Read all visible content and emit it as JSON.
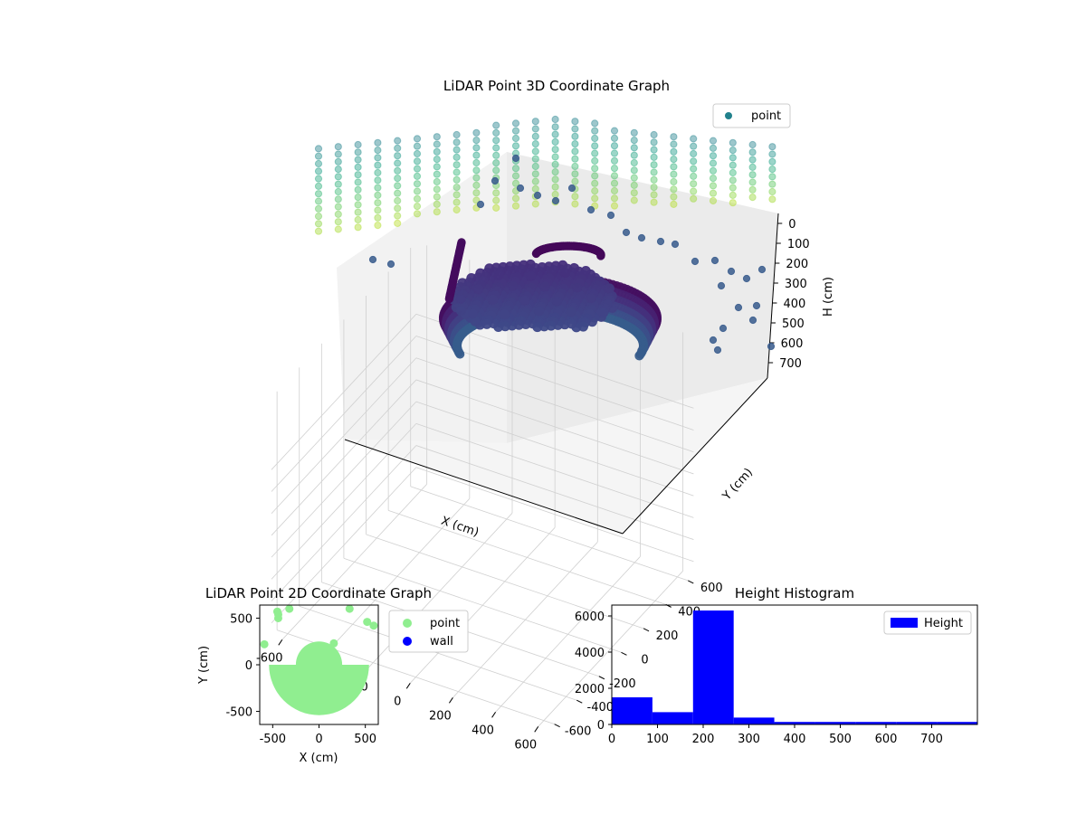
{
  "colors": {
    "scatter_2d": "#90ee90",
    "wall_2d": "#0000ff",
    "hist_bar": "#0000ff",
    "legend_3d_marker": "#21818c",
    "pane_left": "#f2f2f2",
    "pane_right": "#ebebeb",
    "pane_floor": "#f5f5f5",
    "grid": "#d0d0d0"
  },
  "chart_data": [
    {
      "type": "scatter",
      "projection": "3d",
      "title": "LiDAR Point 3D Coordinate Graph",
      "xlabel": "X (cm)",
      "ylabel": "Y (cm)",
      "zlabel": "H (cm)",
      "xticks": [
        -600,
        -400,
        -200,
        0,
        200,
        400,
        600
      ],
      "yticks": [
        -600,
        -400,
        -200,
        0,
        200,
        400,
        600
      ],
      "zticks": [
        0,
        100,
        200,
        300,
        400,
        500,
        600,
        700
      ],
      "xlim": [
        -650,
        650
      ],
      "ylim": [
        -650,
        650
      ],
      "zlim": [
        760,
        0
      ],
      "z_axis_inverted": true,
      "colormap": "viridis",
      "grid": true,
      "legend": {
        "placement": "upper-right",
        "entries": [
          "point"
        ]
      }
    },
    {
      "type": "scatter",
      "title": "LiDAR Point 2D Coordinate Graph",
      "xlabel": "X (cm)",
      "ylabel": "Y (cm)",
      "xticks": [
        -500,
        0,
        500
      ],
      "yticks": [
        -500,
        0,
        500
      ],
      "xlim": [
        -640,
        640
      ],
      "ylim": [
        -640,
        640
      ],
      "legend": {
        "placement": "outside-right",
        "entries": [
          "point",
          "wall"
        ]
      },
      "series": [
        {
          "name": "point",
          "shape": "half-disc",
          "center": [
            0,
            0
          ],
          "radius": 540,
          "region": "y<=0"
        },
        {
          "name": "point",
          "shape": "cap",
          "center": [
            0,
            0
          ],
          "radius": 250,
          "region": "y>=0"
        },
        {
          "name": "point",
          "x": [
            -450,
            -440,
            -440,
            -320,
            330,
            520,
            590,
            -590,
            160
          ],
          "y": [
            570,
            540,
            500,
            600,
            600,
            460,
            420,
            220,
            230
          ]
        },
        {
          "name": "wall",
          "x": [],
          "y": []
        }
      ]
    },
    {
      "type": "bar",
      "title": "Height Histogram",
      "legend": {
        "placement": "upper-right",
        "entries": [
          "Height"
        ]
      },
      "xticks": [
        0,
        100,
        200,
        300,
        400,
        500,
        600,
        700
      ],
      "yticks": [
        0,
        2000,
        4000,
        6000
      ],
      "xlim": [
        0,
        800
      ],
      "ylim": [
        0,
        6600
      ],
      "bin_edges": [
        0,
        88.9,
        177.8,
        266.7,
        355.6,
        444.4,
        533.3,
        622.2,
        711.1,
        800
      ],
      "values": [
        1500,
        680,
        6300,
        380,
        140,
        140,
        140,
        140,
        140
      ]
    }
  ]
}
